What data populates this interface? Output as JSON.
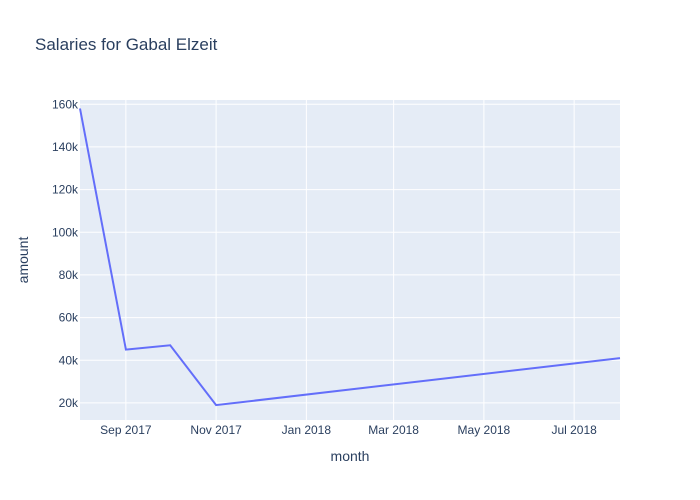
{
  "chart_data": {
    "type": "line",
    "title": "Salaries for Gabal Elzeit",
    "xlabel": "month",
    "ylabel": "amount",
    "x": [
      "2017-08-01",
      "2017-09-01",
      "2017-10-01",
      "2017-11-01",
      "2018-08-01"
    ],
    "y": [
      158000,
      45000,
      47000,
      19000,
      41000
    ],
    "xlim": [
      "2017-08-01",
      "2018-08-01"
    ],
    "ylim": [
      12000,
      162000
    ],
    "x_ticks": [
      {
        "date": "2017-09-01",
        "label": "Sep 2017"
      },
      {
        "date": "2017-11-01",
        "label": "Nov 2017"
      },
      {
        "date": "2018-01-01",
        "label": "Jan 2018"
      },
      {
        "date": "2018-03-01",
        "label": "Mar 2018"
      },
      {
        "date": "2018-05-01",
        "label": "May 2018"
      },
      {
        "date": "2018-07-01",
        "label": "Jul 2018"
      }
    ],
    "y_ticks": [
      {
        "value": 20000,
        "label": "20k"
      },
      {
        "value": 40000,
        "label": "40k"
      },
      {
        "value": 60000,
        "label": "60k"
      },
      {
        "value": 80000,
        "label": "80k"
      },
      {
        "value": 100000,
        "label": "100k"
      },
      {
        "value": 120000,
        "label": "120k"
      },
      {
        "value": 140000,
        "label": "140k"
      },
      {
        "value": 160000,
        "label": "160k"
      }
    ],
    "grid": true,
    "colors": {
      "line": "#636efa",
      "plot_bg": "#e5ecf6",
      "grid": "#ffffff"
    }
  }
}
